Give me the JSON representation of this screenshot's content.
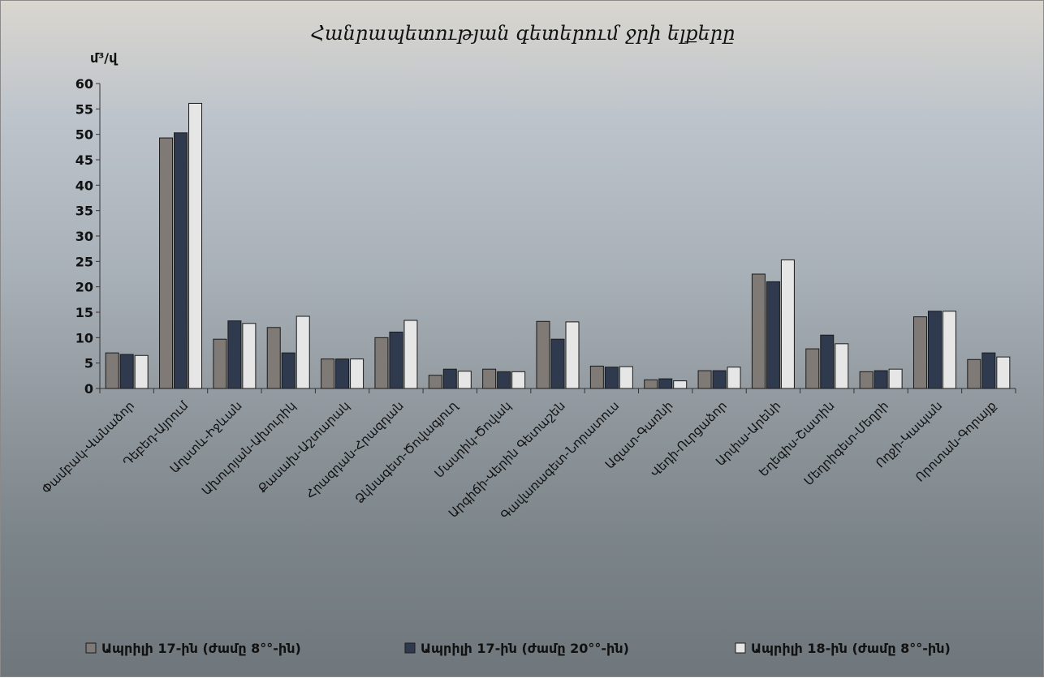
{
  "chart_data": {
    "type": "bar",
    "title": "Հանրապետության գետերում ջրի ելքերը",
    "ylabel": "մ³/վ",
    "ylim": [
      0,
      60
    ],
    "yticks": [
      0,
      5,
      10,
      15,
      20,
      25,
      30,
      35,
      40,
      45,
      50,
      55,
      60
    ],
    "grid": false,
    "legend_position": "bottom",
    "categories": [
      "Փամբակ-Վանաձոր",
      "Դեբեդ-Այրում",
      "Աղստև-Իջևան",
      "Ախուրյան-Ախուրիկ",
      "Քասախ-Աշտարակ",
      "Հրազդան-Հրազդան",
      "Ձկնագետ-Ծովագյուղ",
      "Մասրիկ-Ծովակ",
      "Արգիճի-Վերին Գետաշեն",
      "Գավառագետ-Նորատուս",
      "Ազատ-Գառնի",
      "Վեդի-Ուրցաձոր",
      "Արփա-Արենի",
      "Եղեգիս-Շատին",
      "Մեղրիգետ-Մեղրի",
      "Ողջի-Կապան",
      "Որոտան-Գորայք"
    ],
    "series": [
      {
        "name": "Ապրիլի 17-ին (ժամը 8°°-ին)",
        "color": "#7f7a75",
        "values": [
          7.0,
          49.3,
          9.7,
          12.0,
          5.8,
          10.0,
          2.6,
          3.8,
          13.2,
          4.4,
          1.7,
          3.5,
          22.5,
          7.8,
          3.3,
          14.1,
          5.7
        ]
      },
      {
        "name": "Ապրիլի 17-ին (ժամը 20°°-ին)",
        "color": "#303a4e",
        "values": [
          6.7,
          50.3,
          13.3,
          7.0,
          5.8,
          11.1,
          3.8,
          3.3,
          9.7,
          4.2,
          1.9,
          3.5,
          21.0,
          10.5,
          3.5,
          15.2,
          7.0
        ]
      },
      {
        "name": "Ապրիլի 18-ին (ժամը 8°°-ին)",
        "color": "#e6e6e6",
        "values": [
          6.5,
          56.1,
          12.8,
          14.2,
          5.8,
          13.4,
          3.4,
          3.3,
          13.1,
          4.3,
          1.5,
          4.2,
          25.3,
          8.8,
          3.8,
          15.2,
          6.2
        ]
      }
    ]
  }
}
